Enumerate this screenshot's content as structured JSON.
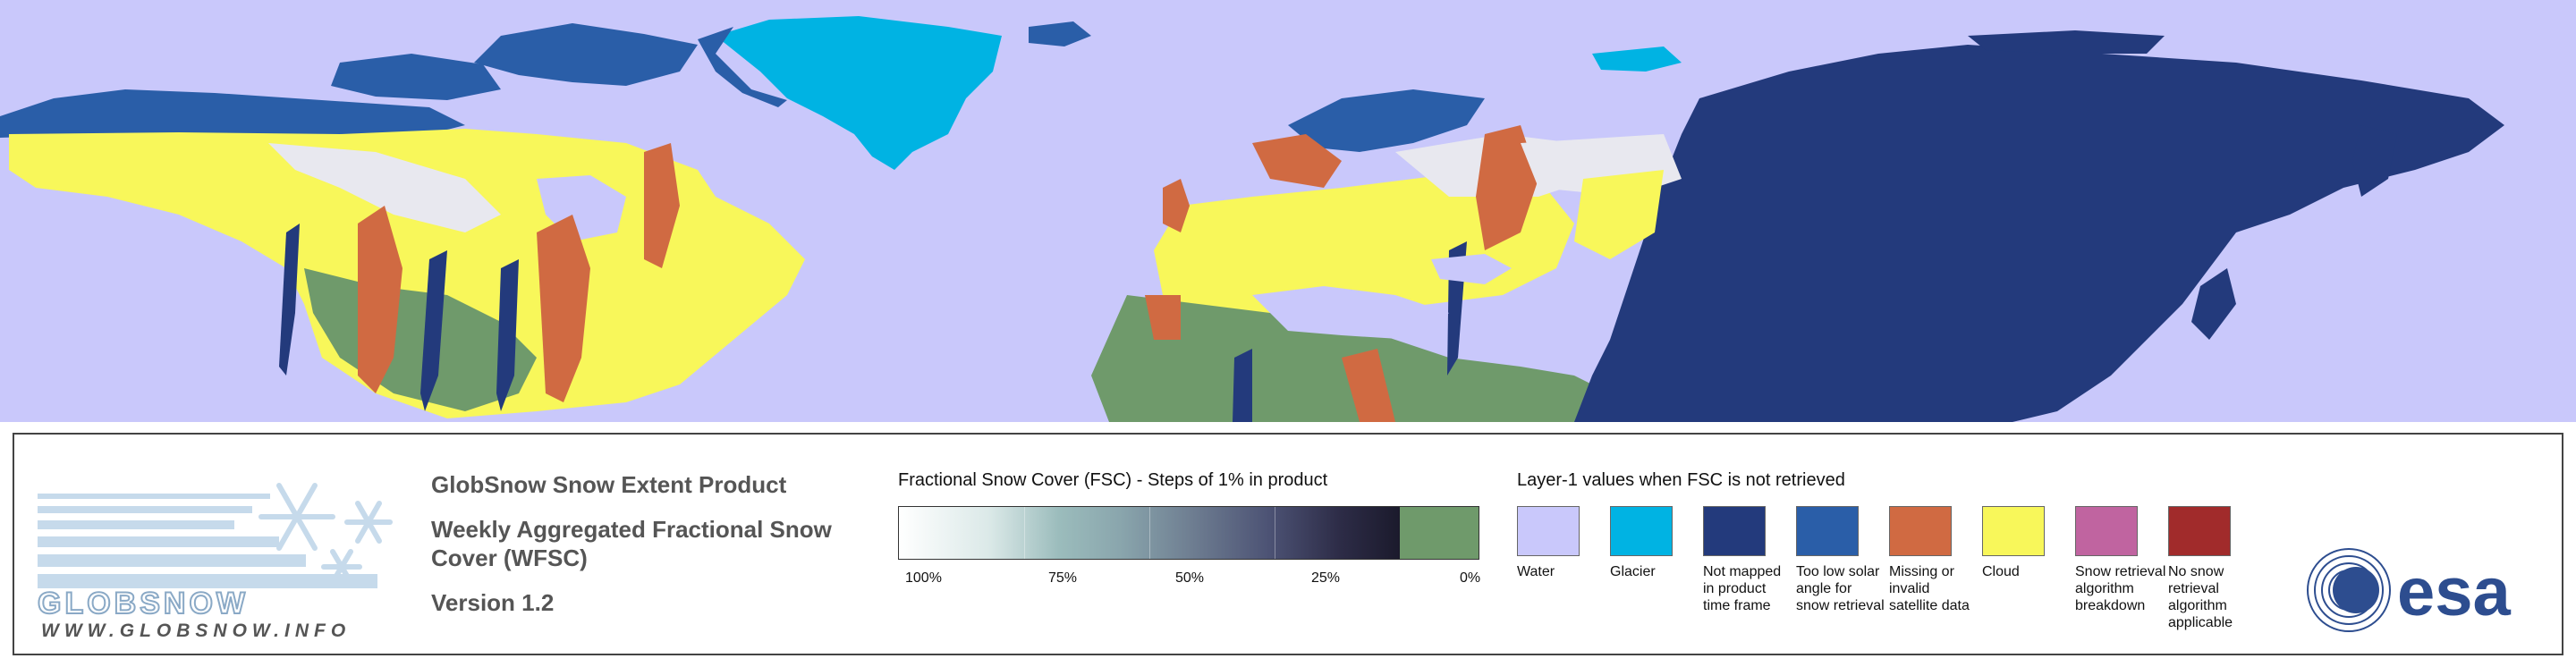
{
  "map": {
    "colors": {
      "water": "#c9c8fb",
      "glacier": "#00b3e3",
      "not_mapped": "#233a7c",
      "low_solar": "#2a5ea8",
      "missing": "#d06a42",
      "cloud": "#f8f75a",
      "breakdown": "#c064a0",
      "no_snow_applicable": "#a12b2b",
      "snow_free": "#6f9a6b"
    }
  },
  "logo": {
    "wordmark": "GLOBSNOW",
    "url": "WWW.GLOBSNOW.INFO"
  },
  "product": {
    "line1": "GlobSnow Snow Extent Product",
    "line2a": "Weekly Aggregated Fractional Snow",
    "line2b": "Cover (WFSC)",
    "version": "Version 1.2"
  },
  "fsc_legend": {
    "title": "Fractional Snow Cover (FSC) - Steps of 1% in product",
    "ticks": [
      "100%",
      "75%",
      "50%",
      "25%",
      "0%"
    ]
  },
  "layer1_legend": {
    "title": "Layer-1 values when FSC is not retrieved",
    "items": [
      {
        "label": "Water",
        "color": "#c9c8fb"
      },
      {
        "label": "Glacier",
        "color": "#00b3e3"
      },
      {
        "label": "Not mapped in product time frame",
        "color": "#233a7c"
      },
      {
        "label": "Too low solar angle for snow retrieval",
        "color": "#2a5ea8"
      },
      {
        "label": "Missing or invalid satellite data",
        "color": "#d06a42"
      },
      {
        "label": "Cloud",
        "color": "#f8f75a"
      },
      {
        "label": "Snow retrieval algorithm breakdown",
        "color": "#c064a0"
      },
      {
        "label": "No snow retrieval algorithm applicable",
        "color": "#a12b2b"
      }
    ]
  },
  "esa": {
    "wordmark": "esa"
  }
}
